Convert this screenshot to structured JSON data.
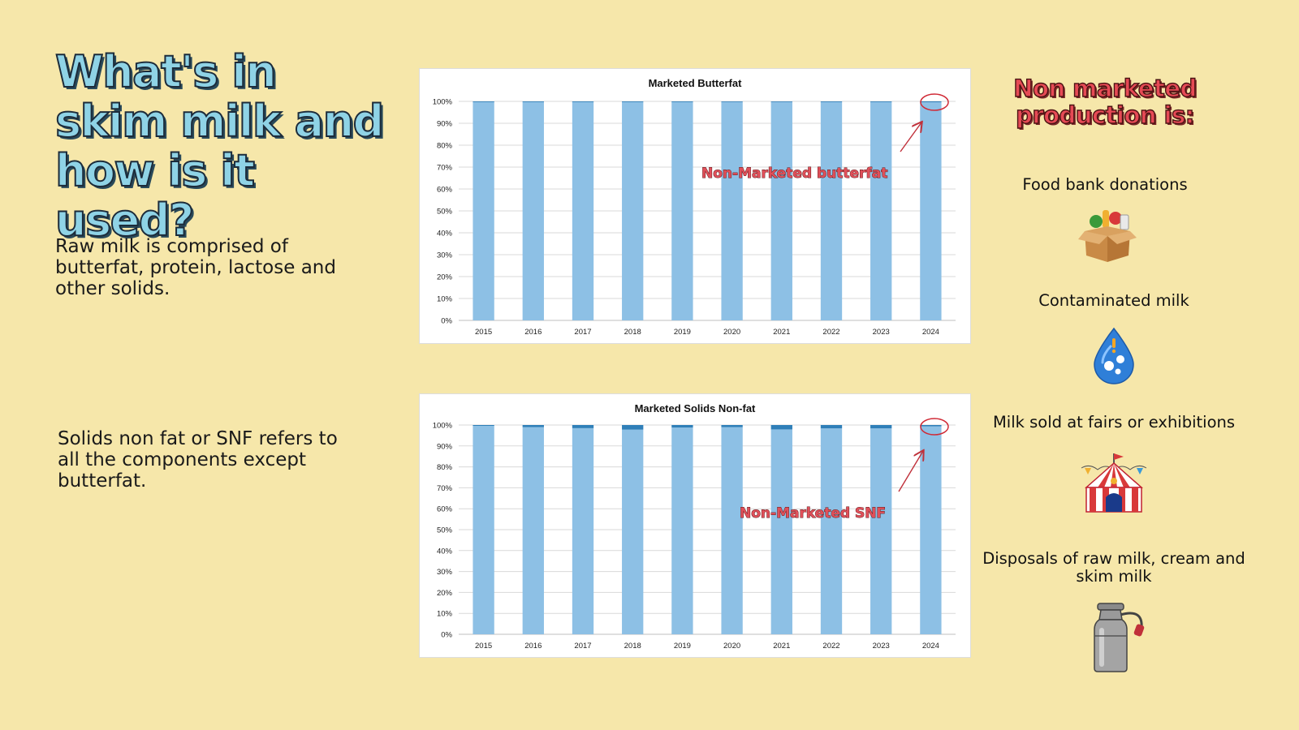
{
  "title": "What's in skim milk and how is it used?",
  "left_texts": {
    "raw_milk": "Raw milk is comprised of butterfat, protein, lactose and other solids.",
    "snf": "Solids non fat or SNF refers to all the components except butterfat."
  },
  "right_panel": {
    "heading": "Non marketed production is:",
    "items": [
      {
        "label": "Food bank donations",
        "icon": "food-box-icon"
      },
      {
        "label": "Contaminated milk",
        "icon": "contaminated-drop-icon"
      },
      {
        "label": "Milk sold at fairs or exhibitions",
        "icon": "circus-tent-icon"
      },
      {
        "label": "Disposals of raw milk, cream and skim milk",
        "icon": "milk-can-icon"
      }
    ]
  },
  "colors": {
    "background": "#f6e7aa",
    "marketed": "#8dc0e5",
    "non_marketed": "#2f7fb8",
    "annotation": "#e0505a"
  },
  "chart_data": [
    {
      "type": "bar",
      "stacked": true,
      "title": "Marketed Butterfat",
      "categories": [
        "2015",
        "2016",
        "2017",
        "2018",
        "2019",
        "2020",
        "2021",
        "2022",
        "2023",
        "2024"
      ],
      "series": [
        {
          "values": [
            99.9,
            99.9,
            99.9,
            99.9,
            99.9,
            99.7,
            99.7,
            99.8,
            99.8,
            99.6
          ]
        },
        {
          "values": [
            0.1,
            0.1,
            0.1,
            0.1,
            0.1,
            0.3,
            0.3,
            0.2,
            0.2,
            0.4
          ]
        }
      ],
      "yticks": [
        "0%",
        "10%",
        "20%",
        "30%",
        "40%",
        "50%",
        "60%",
        "70%",
        "80%",
        "90%",
        "100%"
      ],
      "ylim": [
        0,
        100
      ],
      "grid": true,
      "annotation": "Non-Marketed butterfat"
    },
    {
      "type": "bar",
      "stacked": true,
      "title": "Marketed Solids Non-fat",
      "categories": [
        "2015",
        "2016",
        "2017",
        "2018",
        "2019",
        "2020",
        "2021",
        "2022",
        "2023",
        "2024"
      ],
      "series": [
        {
          "values": [
            99.6,
            99.0,
            98.5,
            97.8,
            98.8,
            99.0,
            97.9,
            98.4,
            98.4,
            99.4
          ]
        },
        {
          "values": [
            0.4,
            1.0,
            1.5,
            2.2,
            1.2,
            1.0,
            2.1,
            1.6,
            1.6,
            0.6
          ]
        }
      ],
      "yticks": [
        "0%",
        "10%",
        "20%",
        "30%",
        "40%",
        "50%",
        "60%",
        "70%",
        "80%",
        "90%",
        "100%"
      ],
      "ylim": [
        0,
        100
      ],
      "grid": true,
      "annotation": "Non-Marketed SNF"
    }
  ]
}
